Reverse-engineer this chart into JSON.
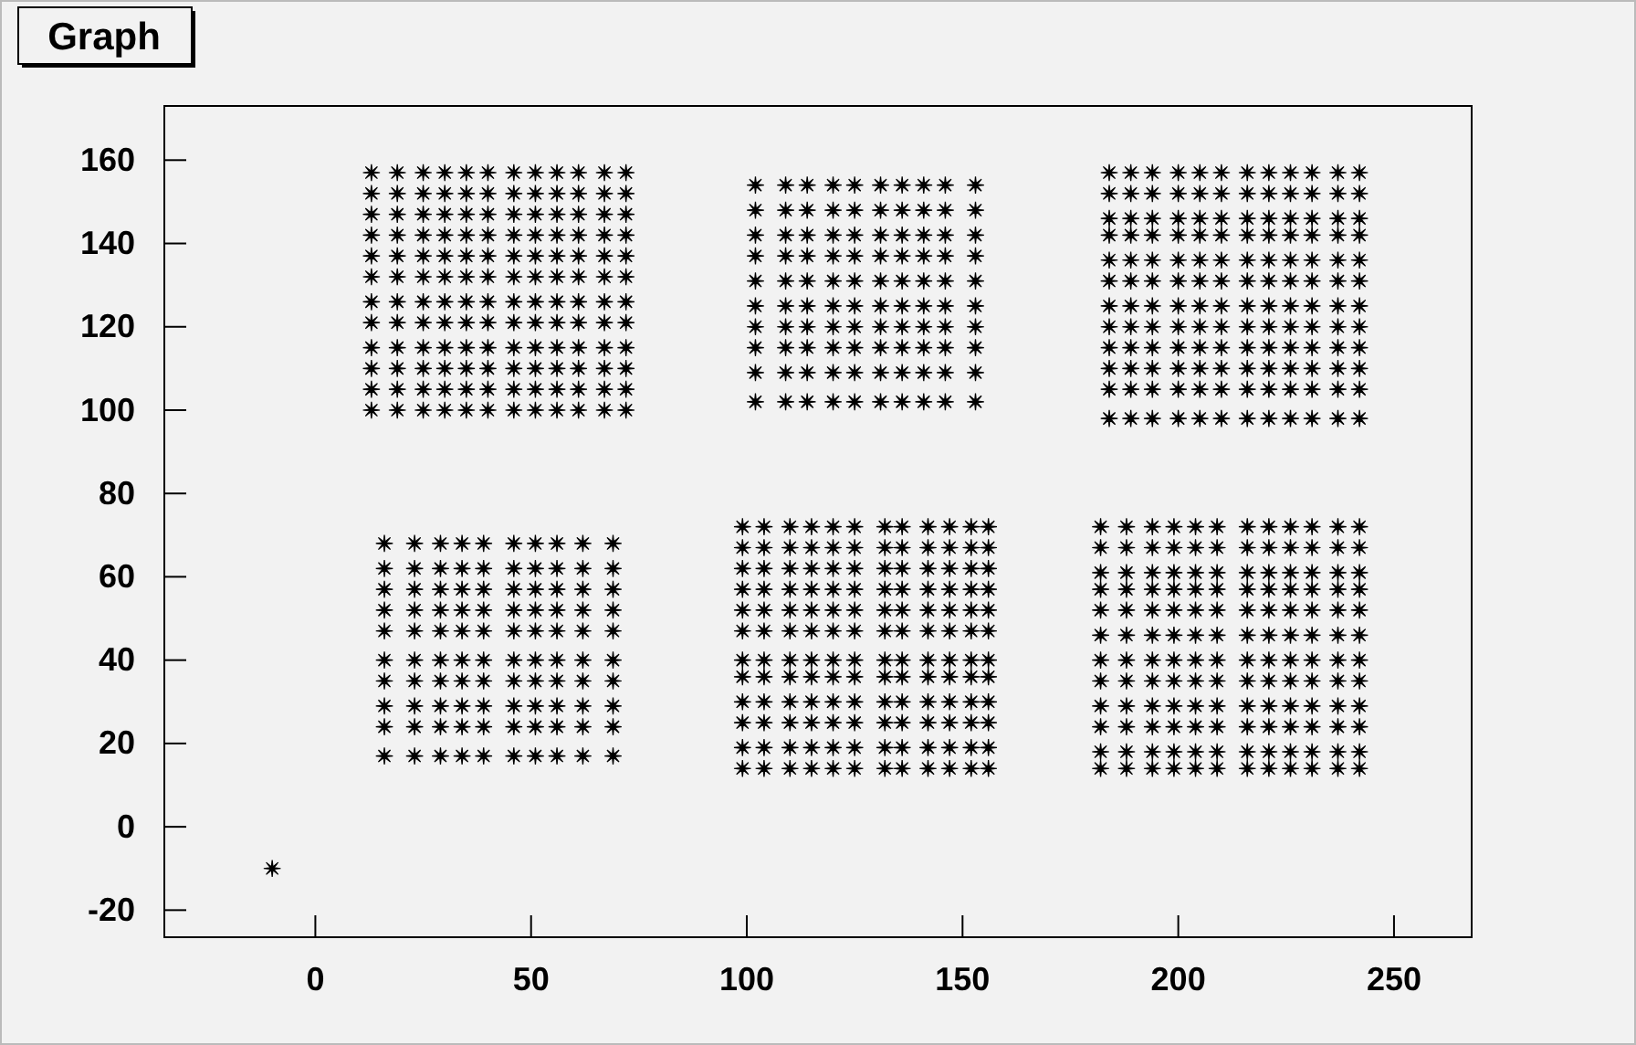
{
  "chart_data": {
    "type": "scatter",
    "title": "Graph",
    "marker": "star",
    "xlim": [
      -35,
      268
    ],
    "ylim": [
      -26.5,
      173
    ],
    "xticks": [
      0,
      50,
      100,
      150,
      200,
      250
    ],
    "yticks": [
      -20,
      0,
      20,
      40,
      60,
      80,
      100,
      120,
      140,
      160
    ],
    "series": [
      {
        "color": "#000000",
        "x": [
          -10
        ],
        "values": [
          -10
        ]
      },
      {
        "color": "#000000",
        "x": [
          13,
          19,
          25,
          30,
          35,
          40,
          46,
          51,
          56,
          61,
          67,
          72,
          13,
          19,
          25,
          30,
          35,
          40,
          46,
          51,
          56,
          61,
          67,
          72,
          13,
          19,
          25,
          30,
          35,
          40,
          46,
          51,
          56,
          61,
          67,
          72,
          13,
          19,
          25,
          30,
          35,
          40,
          46,
          51,
          56,
          61,
          67,
          72,
          13,
          19,
          25,
          30,
          35,
          40,
          46,
          51,
          56,
          61,
          67,
          72,
          13,
          19,
          25,
          30,
          35,
          40,
          46,
          51,
          56,
          61,
          67,
          72,
          13,
          19,
          25,
          30,
          35,
          40,
          46,
          51,
          56,
          61,
          67,
          72,
          13,
          19,
          25,
          30,
          35,
          40,
          46,
          51,
          56,
          61,
          67,
          72,
          13,
          19,
          25,
          30,
          35,
          40,
          46,
          51,
          56,
          61,
          67,
          72,
          13,
          19,
          25,
          30,
          35,
          40,
          46,
          51,
          56,
          61,
          67,
          72,
          13,
          19,
          25,
          30,
          35,
          40,
          46,
          51,
          56,
          61,
          67,
          72,
          13,
          19,
          25,
          30,
          35,
          40,
          46,
          51,
          56,
          61,
          67,
          72
        ],
        "values": [
          157,
          157,
          157,
          157,
          157,
          157,
          157,
          157,
          157,
          157,
          157,
          157,
          152,
          152,
          152,
          152,
          152,
          152,
          152,
          152,
          152,
          152,
          152,
          152,
          147,
          147,
          147,
          147,
          147,
          147,
          147,
          147,
          147,
          147,
          147,
          147,
          142,
          142,
          142,
          142,
          142,
          142,
          142,
          142,
          142,
          142,
          142,
          142,
          137,
          137,
          137,
          137,
          137,
          137,
          137,
          137,
          137,
          137,
          137,
          137,
          132,
          132,
          132,
          132,
          132,
          132,
          132,
          132,
          132,
          132,
          132,
          132,
          126,
          126,
          126,
          126,
          126,
          126,
          126,
          126,
          126,
          126,
          126,
          126,
          121,
          121,
          121,
          121,
          121,
          121,
          121,
          121,
          121,
          121,
          121,
          121,
          115,
          115,
          115,
          115,
          115,
          115,
          115,
          115,
          115,
          115,
          115,
          115,
          110,
          110,
          110,
          110,
          110,
          110,
          110,
          110,
          110,
          110,
          110,
          110,
          105,
          105,
          105,
          105,
          105,
          105,
          105,
          105,
          105,
          105,
          105,
          105,
          100,
          100,
          100,
          100,
          100,
          100,
          100,
          100,
          100,
          100,
          100,
          100
        ]
      },
      {
        "color": "#000000",
        "x": [
          102,
          109,
          114,
          120,
          125,
          131,
          136,
          141,
          146,
          153,
          102,
          109,
          114,
          120,
          125,
          131,
          136,
          141,
          146,
          153,
          102,
          109,
          114,
          120,
          125,
          131,
          136,
          141,
          146,
          153,
          102,
          109,
          114,
          120,
          125,
          131,
          136,
          141,
          146,
          153,
          102,
          109,
          114,
          120,
          125,
          131,
          136,
          141,
          146,
          153,
          102,
          109,
          114,
          120,
          125,
          131,
          136,
          141,
          146,
          153,
          102,
          109,
          114,
          120,
          125,
          131,
          136,
          141,
          146,
          153,
          102,
          109,
          114,
          120,
          125,
          131,
          136,
          141,
          146,
          153,
          102,
          109,
          114,
          120,
          125,
          131,
          136,
          141,
          146,
          153,
          102,
          109,
          114,
          120,
          125,
          131,
          136,
          141,
          146,
          153
        ],
        "values": [
          154,
          154,
          154,
          154,
          154,
          154,
          154,
          154,
          154,
          154,
          148,
          148,
          148,
          148,
          148,
          148,
          148,
          148,
          148,
          148,
          142,
          142,
          142,
          142,
          142,
          142,
          142,
          142,
          142,
          142,
          137,
          137,
          137,
          137,
          137,
          137,
          137,
          137,
          137,
          137,
          131,
          131,
          131,
          131,
          131,
          131,
          131,
          131,
          131,
          131,
          125,
          125,
          125,
          125,
          125,
          125,
          125,
          125,
          125,
          125,
          120,
          120,
          120,
          120,
          120,
          120,
          120,
          120,
          120,
          120,
          115,
          115,
          115,
          115,
          115,
          115,
          115,
          115,
          115,
          115,
          109,
          109,
          109,
          109,
          109,
          109,
          109,
          109,
          109,
          109,
          102,
          102,
          102,
          102,
          102,
          102,
          102,
          102,
          102,
          102
        ]
      },
      {
        "color": "#000000",
        "x": [
          184,
          189,
          194,
          200,
          205,
          210,
          216,
          221,
          226,
          231,
          237,
          242,
          184,
          189,
          194,
          200,
          205,
          210,
          216,
          221,
          226,
          231,
          237,
          242,
          184,
          189,
          194,
          200,
          205,
          210,
          216,
          221,
          226,
          231,
          237,
          242,
          184,
          189,
          194,
          200,
          205,
          210,
          216,
          221,
          226,
          231,
          237,
          242,
          184,
          189,
          194,
          200,
          205,
          210,
          216,
          221,
          226,
          231,
          237,
          242,
          184,
          189,
          194,
          200,
          205,
          210,
          216,
          221,
          226,
          231,
          237,
          242,
          184,
          189,
          194,
          200,
          205,
          210,
          216,
          221,
          226,
          231,
          237,
          242,
          184,
          189,
          194,
          200,
          205,
          210,
          216,
          221,
          226,
          231,
          237,
          242,
          184,
          189,
          194,
          200,
          205,
          210,
          216,
          221,
          226,
          231,
          237,
          242,
          184,
          189,
          194,
          200,
          205,
          210,
          216,
          221,
          226,
          231,
          237,
          242,
          184,
          189,
          194,
          200,
          205,
          210,
          216,
          221,
          226,
          231,
          237,
          242,
          184,
          189,
          194,
          200,
          205,
          210,
          216,
          221,
          226,
          231,
          237,
          242
        ],
        "values": [
          157,
          157,
          157,
          157,
          157,
          157,
          157,
          157,
          157,
          157,
          157,
          157,
          152,
          152,
          152,
          152,
          152,
          152,
          152,
          152,
          152,
          152,
          152,
          152,
          146,
          146,
          146,
          146,
          146,
          146,
          146,
          146,
          146,
          146,
          146,
          146,
          142,
          142,
          142,
          142,
          142,
          142,
          142,
          142,
          142,
          142,
          142,
          142,
          136,
          136,
          136,
          136,
          136,
          136,
          136,
          136,
          136,
          136,
          136,
          136,
          131,
          131,
          131,
          131,
          131,
          131,
          131,
          131,
          131,
          131,
          131,
          131,
          125,
          125,
          125,
          125,
          125,
          125,
          125,
          125,
          125,
          125,
          125,
          125,
          120,
          120,
          120,
          120,
          120,
          120,
          120,
          120,
          120,
          120,
          120,
          120,
          115,
          115,
          115,
          115,
          115,
          115,
          115,
          115,
          115,
          115,
          115,
          115,
          110,
          110,
          110,
          110,
          110,
          110,
          110,
          110,
          110,
          110,
          110,
          110,
          105,
          105,
          105,
          105,
          105,
          105,
          105,
          105,
          105,
          105,
          105,
          105,
          98,
          98,
          98,
          98,
          98,
          98,
          98,
          98,
          98,
          98,
          98,
          98
        ]
      },
      {
        "color": "#000000",
        "x": [
          16,
          23,
          29,
          34,
          39,
          46,
          51,
          56,
          62,
          69,
          16,
          23,
          29,
          34,
          39,
          46,
          51,
          56,
          62,
          69,
          16,
          23,
          29,
          34,
          39,
          46,
          51,
          56,
          62,
          69,
          16,
          23,
          29,
          34,
          39,
          46,
          51,
          56,
          62,
          69,
          16,
          23,
          29,
          34,
          39,
          46,
          51,
          56,
          62,
          69,
          16,
          23,
          29,
          34,
          39,
          46,
          51,
          56,
          62,
          69,
          16,
          23,
          29,
          34,
          39,
          46,
          51,
          56,
          62,
          69,
          16,
          23,
          29,
          34,
          39,
          46,
          51,
          56,
          62,
          69,
          16,
          23,
          29,
          34,
          39,
          46,
          51,
          56,
          62,
          69,
          16,
          23,
          29,
          34,
          39,
          46,
          51,
          56,
          62,
          69
        ],
        "values": [
          68,
          68,
          68,
          68,
          68,
          68,
          68,
          68,
          68,
          68,
          62,
          62,
          62,
          62,
          62,
          62,
          62,
          62,
          62,
          62,
          57,
          57,
          57,
          57,
          57,
          57,
          57,
          57,
          57,
          57,
          52,
          52,
          52,
          52,
          52,
          52,
          52,
          52,
          52,
          52,
          47,
          47,
          47,
          47,
          47,
          47,
          47,
          47,
          47,
          47,
          40,
          40,
          40,
          40,
          40,
          40,
          40,
          40,
          40,
          40,
          35,
          35,
          35,
          35,
          35,
          35,
          35,
          35,
          35,
          35,
          29,
          29,
          29,
          29,
          29,
          29,
          29,
          29,
          29,
          29,
          24,
          24,
          24,
          24,
          24,
          24,
          24,
          24,
          24,
          24,
          17,
          17,
          17,
          17,
          17,
          17,
          17,
          17,
          17,
          17
        ]
      },
      {
        "color": "#000000",
        "x": [
          99,
          104,
          110,
          115,
          120,
          125,
          132,
          136,
          142,
          147,
          152,
          156,
          99,
          104,
          110,
          115,
          120,
          125,
          132,
          136,
          142,
          147,
          152,
          156,
          99,
          104,
          110,
          115,
          120,
          125,
          132,
          136,
          142,
          147,
          152,
          156,
          99,
          104,
          110,
          115,
          120,
          125,
          132,
          136,
          142,
          147,
          152,
          156,
          99,
          104,
          110,
          115,
          120,
          125,
          132,
          136,
          142,
          147,
          152,
          156,
          99,
          104,
          110,
          115,
          120,
          125,
          132,
          136,
          142,
          147,
          152,
          156,
          99,
          104,
          110,
          115,
          120,
          125,
          132,
          136,
          142,
          147,
          152,
          156,
          99,
          104,
          110,
          115,
          120,
          125,
          132,
          136,
          142,
          147,
          152,
          156,
          99,
          104,
          110,
          115,
          120,
          125,
          132,
          136,
          142,
          147,
          152,
          156,
          99,
          104,
          110,
          115,
          120,
          125,
          132,
          136,
          142,
          147,
          152,
          156,
          99,
          104,
          110,
          115,
          120,
          125,
          132,
          136,
          142,
          147,
          152,
          156,
          99,
          104,
          110,
          115,
          120,
          125,
          132,
          136,
          142,
          147,
          152,
          156
        ],
        "values": [
          72,
          72,
          72,
          72,
          72,
          72,
          72,
          72,
          72,
          72,
          72,
          72,
          67,
          67,
          67,
          67,
          67,
          67,
          67,
          67,
          67,
          67,
          67,
          67,
          62,
          62,
          62,
          62,
          62,
          62,
          62,
          62,
          62,
          62,
          62,
          62,
          57,
          57,
          57,
          57,
          57,
          57,
          57,
          57,
          57,
          57,
          57,
          57,
          52,
          52,
          52,
          52,
          52,
          52,
          52,
          52,
          52,
          52,
          52,
          52,
          47,
          47,
          47,
          47,
          47,
          47,
          47,
          47,
          47,
          47,
          47,
          47,
          40,
          40,
          40,
          40,
          40,
          40,
          40,
          40,
          40,
          40,
          40,
          40,
          36,
          36,
          36,
          36,
          36,
          36,
          36,
          36,
          36,
          36,
          36,
          36,
          30,
          30,
          30,
          30,
          30,
          30,
          30,
          30,
          30,
          30,
          30,
          30,
          25,
          25,
          25,
          25,
          25,
          25,
          25,
          25,
          25,
          25,
          25,
          25,
          19,
          19,
          19,
          19,
          19,
          19,
          19,
          19,
          19,
          19,
          19,
          19,
          14,
          14,
          14,
          14,
          14,
          14,
          14,
          14,
          14,
          14,
          14,
          14
        ]
      },
      {
        "color": "#000000",
        "x": [
          182,
          188,
          194,
          199,
          204,
          209,
          216,
          221,
          226,
          231,
          237,
          242,
          182,
          188,
          194,
          199,
          204,
          209,
          216,
          221,
          226,
          231,
          237,
          242,
          182,
          188,
          194,
          199,
          204,
          209,
          216,
          221,
          226,
          231,
          237,
          242,
          182,
          188,
          194,
          199,
          204,
          209,
          216,
          221,
          226,
          231,
          237,
          242,
          182,
          188,
          194,
          199,
          204,
          209,
          216,
          221,
          226,
          231,
          237,
          242,
          182,
          188,
          194,
          199,
          204,
          209,
          216,
          221,
          226,
          231,
          237,
          242,
          182,
          188,
          194,
          199,
          204,
          209,
          216,
          221,
          226,
          231,
          237,
          242,
          182,
          188,
          194,
          199,
          204,
          209,
          216,
          221,
          226,
          231,
          237,
          242,
          182,
          188,
          194,
          199,
          204,
          209,
          216,
          221,
          226,
          231,
          237,
          242,
          182,
          188,
          194,
          199,
          204,
          209,
          216,
          221,
          226,
          231,
          237,
          242,
          182,
          188,
          194,
          199,
          204,
          209,
          216,
          221,
          226,
          231,
          237,
          242,
          182,
          188,
          194,
          199,
          204,
          209,
          216,
          221,
          226,
          231,
          237,
          242
        ],
        "values": [
          72,
          72,
          72,
          72,
          72,
          72,
          72,
          72,
          72,
          72,
          72,
          72,
          67,
          67,
          67,
          67,
          67,
          67,
          67,
          67,
          67,
          67,
          67,
          67,
          61,
          61,
          61,
          61,
          61,
          61,
          61,
          61,
          61,
          61,
          61,
          61,
          57,
          57,
          57,
          57,
          57,
          57,
          57,
          57,
          57,
          57,
          57,
          57,
          52,
          52,
          52,
          52,
          52,
          52,
          52,
          52,
          52,
          52,
          52,
          52,
          46,
          46,
          46,
          46,
          46,
          46,
          46,
          46,
          46,
          46,
          46,
          46,
          40,
          40,
          40,
          40,
          40,
          40,
          40,
          40,
          40,
          40,
          40,
          40,
          35,
          35,
          35,
          35,
          35,
          35,
          35,
          35,
          35,
          35,
          35,
          35,
          29,
          29,
          29,
          29,
          29,
          29,
          29,
          29,
          29,
          29,
          29,
          29,
          24,
          24,
          24,
          24,
          24,
          24,
          24,
          24,
          24,
          24,
          24,
          24,
          18,
          18,
          18,
          18,
          18,
          18,
          18,
          18,
          18,
          18,
          18,
          18,
          14,
          14,
          14,
          14,
          14,
          14,
          14,
          14,
          14,
          14,
          14,
          14
        ]
      }
    ]
  }
}
